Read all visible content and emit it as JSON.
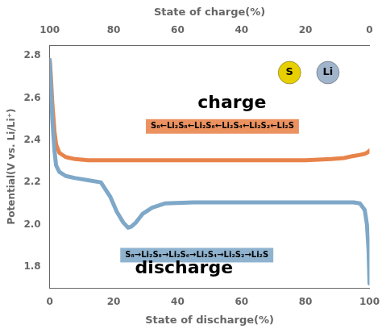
{
  "chart_data": {
    "type": "line",
    "xlabel": "State of discharge(%)",
    "x2label": "State of charge(%)",
    "ylabel": "Potential(V vs. Li/Li⁺)",
    "series": [
      {
        "color": "#7FA8C8",
        "x": [
          0,
          0.3,
          0.8,
          1.5,
          2,
          3,
          5,
          8,
          12,
          16,
          19,
          21,
          23,
          24.5,
          25.5,
          27,
          29,
          32,
          36,
          45,
          55,
          65,
          75,
          85,
          92,
          95,
          97,
          98.5,
          99.2,
          99.7,
          100
        ],
        "values": [
          2.78,
          2.68,
          2.5,
          2.35,
          2.28,
          2.25,
          2.23,
          2.22,
          2.21,
          2.2,
          2.13,
          2.06,
          2.01,
          1.985,
          1.99,
          2.01,
          2.05,
          2.08,
          2.1,
          2.105,
          2.105,
          2.105,
          2.105,
          2.105,
          2.105,
          2.105,
          2.1,
          2.07,
          2.0,
          1.88,
          1.72
        ]
      },
      {
        "color": "#E8834A",
        "x": [
          0,
          0.3,
          0.8,
          1.5,
          2,
          3,
          5,
          8,
          12,
          20,
          30,
          40,
          50,
          60,
          70,
          80,
          88,
          92,
          95,
          97,
          98.5,
          99.2,
          99.7,
          100
        ],
        "values": [
          2.78,
          2.72,
          2.58,
          2.44,
          2.38,
          2.34,
          2.32,
          2.31,
          2.305,
          2.305,
          2.305,
          2.305,
          2.305,
          2.305,
          2.305,
          2.305,
          2.31,
          2.315,
          2.325,
          2.33,
          2.335,
          2.34,
          2.345,
          2.35
        ]
      }
    ],
    "xlim": [
      0,
      100
    ],
    "xticks": [
      0,
      20,
      40,
      60,
      80,
      100
    ],
    "x2lim": [
      0,
      100
    ],
    "x2ticks": [
      {
        "value": 0,
        "label": "100"
      },
      {
        "value": 20,
        "label": "80"
      },
      {
        "value": 40,
        "label": "60"
      },
      {
        "value": 60,
        "label": "40"
      },
      {
        "value": 80,
        "label": "20"
      },
      {
        "value": 100,
        "label": "0"
      }
    ],
    "ylim": [
      1.7,
      2.85
    ],
    "yticks": [
      1.8,
      {
        "value": 2.0,
        "label": "2.0"
      },
      2.2,
      2.4,
      2.6,
      2.8
    ],
    "grid": false,
    "annotations": [
      {
        "text": "S₈←Li₂S₈←Li₂S₆←Li₂S₄←Li₂S₂←Li₂S",
        "x": 54,
        "y": 2.465,
        "color": "#E8834A"
      },
      {
        "text": "S₈→Li₂S₈→Li₂S₆→Li₂S₄→Li₂S₂→Li₂S",
        "x": 46,
        "y": 1.855,
        "color": "#7FA8C8"
      },
      {
        "text": "charge",
        "x": 57,
        "y": 2.575
      },
      {
        "text": "discharge",
        "x": 42,
        "y": 1.79
      },
      {
        "text": "S",
        "x": 75,
        "y": 2.72,
        "color": "#E8D000",
        "marker": "circle"
      },
      {
        "text": "Li",
        "x": 87,
        "y": 2.72,
        "color": "#A0B4CC",
        "marker": "circle"
      }
    ]
  }
}
